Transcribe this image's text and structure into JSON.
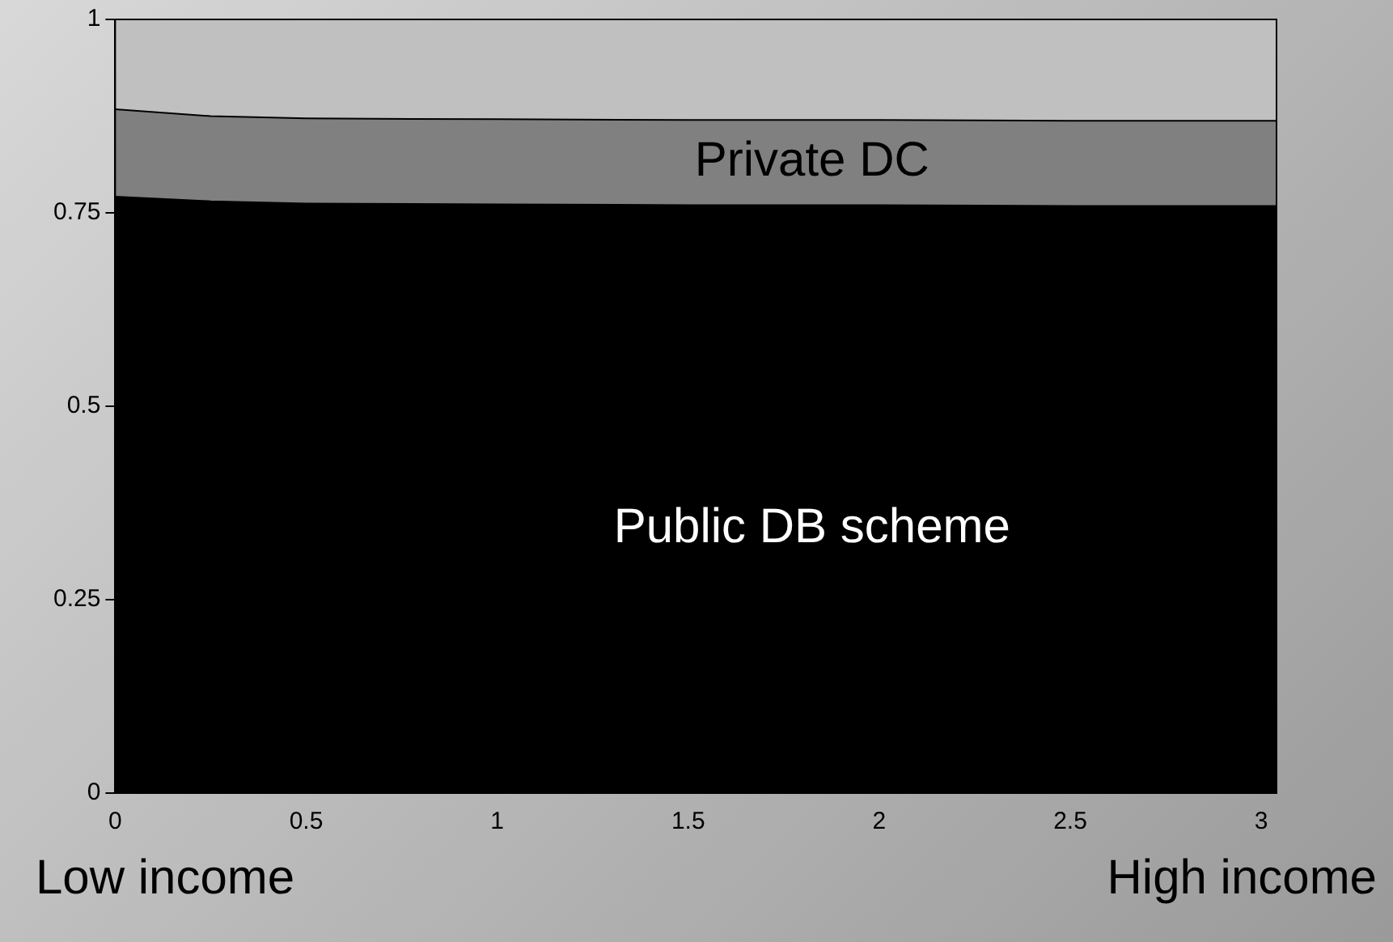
{
  "chart_data": {
    "type": "area",
    "stacked": true,
    "x": [
      0,
      0.25,
      0.5,
      1,
      1.5,
      2,
      2.5,
      3.04
    ],
    "series": [
      {
        "name": "Public DB scheme",
        "color": "#000000",
        "values": [
          0.771,
          0.765,
          0.762,
          0.761,
          0.76,
          0.76,
          0.759,
          0.759
        ]
      },
      {
        "name": "Private DC",
        "color": "#808080",
        "values": [
          0.113,
          0.11,
          0.11,
          0.11,
          0.11,
          0.11,
          0.11,
          0.11
        ]
      },
      {
        "color": "#c0c0c0",
        "values": [
          0.116,
          0.125,
          0.128,
          0.129,
          0.13,
          0.13,
          0.131,
          0.131
        ]
      }
    ],
    "xlim": [
      0,
      3.04
    ],
    "xticks": [
      0,
      0.5,
      1,
      1.5,
      2,
      2.5,
      3
    ],
    "ylim": [
      0,
      1
    ],
    "yticks": [
      0,
      0.25,
      0.5,
      0.75,
      1
    ],
    "grid": false,
    "legend": false,
    "marker": "none",
    "annotations": [
      "Low income",
      "High income"
    ]
  }
}
